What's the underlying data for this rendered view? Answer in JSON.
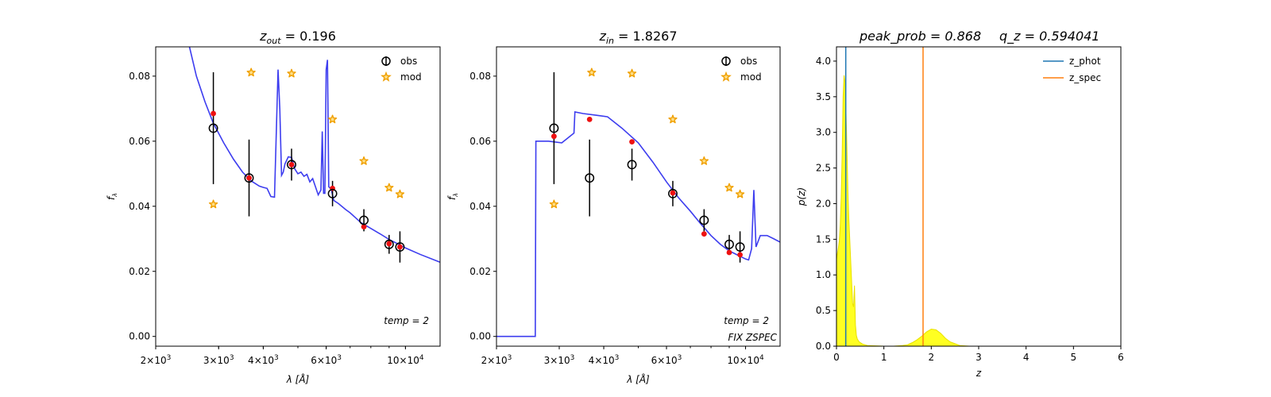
{
  "chart_data": [
    {
      "type": "line",
      "title_var": "z",
      "title_sub": "out",
      "title_value": "= 0.196",
      "xlabel": "λ [Å]",
      "ylabel": "f",
      "ylabel_sub": "λ",
      "xscale": "log",
      "xlim": [
        2000,
        12500
      ],
      "ylim": [
        -0.003,
        0.089
      ],
      "xticks": [
        {
          "value": 2000,
          "mant": "2",
          "exp": "3"
        },
        {
          "value": 3000,
          "mant": "3",
          "exp": "3"
        },
        {
          "value": 4000,
          "mant": "4",
          "exp": "3"
        },
        {
          "value": 6000,
          "mant": "6",
          "exp": "3"
        },
        {
          "value": 10000,
          "mant": "10",
          "exp": "4"
        }
      ],
      "yticks": [
        "0.00",
        "0.02",
        "0.04",
        "0.06",
        "0.08"
      ],
      "legend_position": "top-right",
      "legend": [
        "obs",
        "mod"
      ],
      "annotations": [
        "temp = 2"
      ],
      "model_curve": {
        "x": [
          2480,
          2600,
          2750,
          2900,
          3100,
          3300,
          3500,
          3700,
          3900,
          4000,
          4100,
          4200,
          4300,
          4400,
          4450,
          4500,
          4550,
          4600,
          4700,
          4800,
          4900,
          5000,
          5100,
          5200,
          5300,
          5400,
          5500,
          5600,
          5700,
          5800,
          5850,
          5900,
          5950,
          6000,
          6050,
          6100,
          6200,
          6300,
          6500,
          6800,
          7000,
          7500,
          8000,
          8500,
          9000,
          9500,
          10000,
          11000,
          12500
        ],
        "y": [
          0.0895,
          0.08,
          0.072,
          0.0655,
          0.0595,
          0.0545,
          0.0505,
          0.0478,
          0.0462,
          0.0458,
          0.0455,
          0.043,
          0.0428,
          0.082,
          0.07,
          0.0495,
          0.0505,
          0.053,
          0.0552,
          0.055,
          0.0515,
          0.05,
          0.0505,
          0.0492,
          0.0498,
          0.0475,
          0.0485,
          0.046,
          0.0435,
          0.045,
          0.063,
          0.044,
          0.044,
          0.082,
          0.085,
          0.046,
          0.0452,
          0.0418,
          0.0408,
          0.039,
          0.038,
          0.035,
          0.0332,
          0.0315,
          0.0298,
          0.0285,
          0.0272,
          0.0252,
          0.0228
        ]
      },
      "obs": [
        {
          "x": 2900,
          "y": 0.064,
          "err": 0.0172
        },
        {
          "x": 3650,
          "y": 0.0487,
          "err": 0.0118
        },
        {
          "x": 4800,
          "y": 0.0528,
          "err": 0.0049
        },
        {
          "x": 6250,
          "y": 0.0439,
          "err": 0.0039
        },
        {
          "x": 7650,
          "y": 0.0357,
          "err": 0.0034
        },
        {
          "x": 9000,
          "y": 0.0283,
          "err": 0.0029
        },
        {
          "x": 9650,
          "y": 0.0275,
          "err": 0.0048
        }
      ],
      "model_points": [
        {
          "x": 2900,
          "y": 0.0685
        },
        {
          "x": 3650,
          "y": 0.0487
        },
        {
          "x": 4800,
          "y": 0.0528
        },
        {
          "x": 6250,
          "y": 0.0455
        },
        {
          "x": 7650,
          "y": 0.0337
        },
        {
          "x": 9000,
          "y": 0.0285
        },
        {
          "x": 9650,
          "y": 0.0275
        }
      ],
      "mod": [
        {
          "x": 2900,
          "y": 0.0406
        },
        {
          "x": 3700,
          "y": 0.0811
        },
        {
          "x": 4800,
          "y": 0.0808
        },
        {
          "x": 6250,
          "y": 0.0667
        },
        {
          "x": 7650,
          "y": 0.0539
        },
        {
          "x": 9000,
          "y": 0.0457
        },
        {
          "x": 9650,
          "y": 0.0437
        }
      ]
    },
    {
      "type": "line",
      "title_var": "z",
      "title_sub": "in",
      "title_value": "= 1.8267",
      "xlabel": "λ [Å]",
      "ylabel": "f",
      "ylabel_sub": "λ",
      "xscale": "log",
      "xlim": [
        2000,
        12500
      ],
      "ylim": [
        -0.003,
        0.089
      ],
      "xticks": [
        {
          "value": 2000,
          "mant": "2",
          "exp": "3"
        },
        {
          "value": 3000,
          "mant": "3",
          "exp": "3"
        },
        {
          "value": 4000,
          "mant": "4",
          "exp": "3"
        },
        {
          "value": 6000,
          "mant": "6",
          "exp": "3"
        },
        {
          "value": 10000,
          "mant": "10",
          "exp": "4"
        }
      ],
      "yticks": [
        "0.00",
        "0.02",
        "0.04",
        "0.06",
        "0.08"
      ],
      "legend_position": "top-right",
      "legend": [
        "obs",
        "mod"
      ],
      "annotations": [
        "temp = 2",
        "FIX ZSPEC"
      ],
      "model_curve": {
        "x": [
          2000,
          2570,
          2580,
          2800,
          3050,
          3300,
          3320,
          3500,
          3800,
          4100,
          4500,
          5000,
          5500,
          6000,
          6500,
          7000,
          7500,
          8000,
          8500,
          9000,
          9500,
          10000,
          10200,
          10400,
          10550,
          10700,
          11000,
          11500,
          12000,
          12500
        ],
        "y": [
          0.0,
          0.0,
          0.06,
          0.06,
          0.0595,
          0.0625,
          0.069,
          0.0685,
          0.068,
          0.0675,
          0.064,
          0.0595,
          0.0535,
          0.0475,
          0.0425,
          0.0385,
          0.0345,
          0.031,
          0.0283,
          0.0263,
          0.025,
          0.0238,
          0.0235,
          0.027,
          0.045,
          0.0275,
          0.031,
          0.031,
          0.03,
          0.029
        ]
      },
      "obs": [
        {
          "x": 2900,
          "y": 0.064,
          "err": 0.0172
        },
        {
          "x": 3650,
          "y": 0.0487,
          "err": 0.0118
        },
        {
          "x": 4800,
          "y": 0.0528,
          "err": 0.0049
        },
        {
          "x": 6250,
          "y": 0.0439,
          "err": 0.0039
        },
        {
          "x": 7650,
          "y": 0.0357,
          "err": 0.0034
        },
        {
          "x": 9000,
          "y": 0.0283,
          "err": 0.0029
        },
        {
          "x": 9650,
          "y": 0.0275,
          "err": 0.0048
        }
      ],
      "model_points": [
        {
          "x": 2900,
          "y": 0.0615
        },
        {
          "x": 3650,
          "y": 0.0667
        },
        {
          "x": 4800,
          "y": 0.0598
        },
        {
          "x": 6250,
          "y": 0.0441
        },
        {
          "x": 7650,
          "y": 0.0315
        },
        {
          "x": 9000,
          "y": 0.0258
        },
        {
          "x": 9650,
          "y": 0.0251
        }
      ],
      "mod": [
        {
          "x": 2900,
          "y": 0.0406
        },
        {
          "x": 3700,
          "y": 0.0811
        },
        {
          "x": 4800,
          "y": 0.0808
        },
        {
          "x": 6250,
          "y": 0.0667
        },
        {
          "x": 7650,
          "y": 0.0539
        },
        {
          "x": 9000,
          "y": 0.0457
        },
        {
          "x": 9650,
          "y": 0.0437
        }
      ]
    },
    {
      "type": "area",
      "title_left": "peak_prob = 0.868",
      "title_right": "q_z = 0.594041",
      "xlabel": "z",
      "ylabel": "p(z)",
      "xlim": [
        0,
        6
      ],
      "ylim": [
        0,
        4.2
      ],
      "xticks": [
        "0",
        "1",
        "2",
        "3",
        "4",
        "5",
        "6"
      ],
      "yticks": [
        "0.0",
        "0.5",
        "1.0",
        "1.5",
        "2.0",
        "2.5",
        "3.0",
        "3.5",
        "4.0"
      ],
      "legend_position": "top-right",
      "legend": [
        "z_phot",
        "z_spec"
      ],
      "z_phot": 0.196,
      "z_spec": 1.8267,
      "pz": {
        "x": [
          0.0,
          0.02,
          0.04,
          0.06,
          0.08,
          0.1,
          0.12,
          0.14,
          0.16,
          0.18,
          0.2,
          0.22,
          0.24,
          0.26,
          0.28,
          0.3,
          0.32,
          0.34,
          0.36,
          0.38,
          0.4,
          0.42,
          0.44,
          0.48,
          0.55,
          0.65,
          0.8,
          1.0,
          1.2,
          1.4,
          1.5,
          1.6,
          1.7,
          1.8,
          1.9,
          2.0,
          2.1,
          2.2,
          2.3,
          2.4,
          2.6,
          2.8,
          3.0,
          4.0,
          5.0
        ],
        "y": [
          1.22,
          1.3,
          1.38,
          1.48,
          1.7,
          2.1,
          2.7,
          3.5,
          3.8,
          3.7,
          3.3,
          2.8,
          2.2,
          1.8,
          1.5,
          1.2,
          0.9,
          0.6,
          0.55,
          0.85,
          0.3,
          0.15,
          0.1,
          0.06,
          0.03,
          0.01,
          0.005,
          0.0,
          0.0,
          0.01,
          0.02,
          0.05,
          0.09,
          0.14,
          0.2,
          0.24,
          0.23,
          0.18,
          0.11,
          0.06,
          0.01,
          0.0,
          0.0,
          0.0,
          0.0
        ]
      }
    }
  ]
}
